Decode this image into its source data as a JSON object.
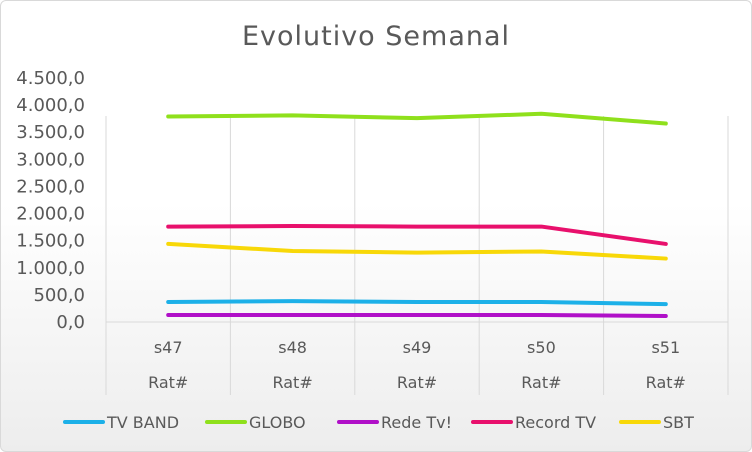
{
  "chart_data": {
    "type": "line",
    "title": "Evolutivo Semanal",
    "categories": [
      "s47",
      "s48",
      "s49",
      "s50",
      "s51"
    ],
    "category_group_label": "Rat#",
    "y_ticks": [
      "0,0",
      "500,0",
      "1.000,0",
      "1.500,0",
      "2.000,0",
      "2.500,0",
      "3.000,0",
      "3.500,0",
      "4.000,0",
      "4.500,0"
    ],
    "ylim": [
      0,
      4500
    ],
    "grid": "vertical",
    "legend_position": "bottom",
    "series": [
      {
        "name": "TV BAND",
        "color": "#1cb0e8",
        "values": [
          370,
          385,
          370,
          370,
          330
        ]
      },
      {
        "name": "GLOBO",
        "color": "#8fe01c",
        "values": [
          3790,
          3810,
          3760,
          3840,
          3660
        ]
      },
      {
        "name": "Rede Tv!",
        "color": "#b010c8",
        "values": [
          130,
          130,
          130,
          130,
          110
        ]
      },
      {
        "name": "Record TV",
        "color": "#e8106c",
        "values": [
          1760,
          1770,
          1760,
          1760,
          1440
        ]
      },
      {
        "name": "SBT",
        "color": "#f8d808",
        "values": [
          1440,
          1310,
          1280,
          1300,
          1170
        ]
      }
    ]
  }
}
